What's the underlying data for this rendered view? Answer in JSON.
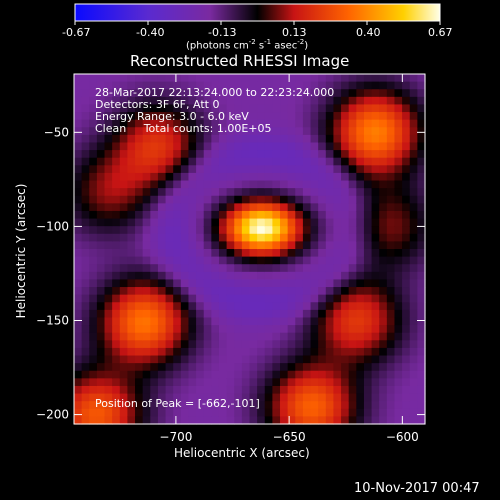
{
  "colorbar": {
    "ticks": [
      "-0.67",
      "-0.40",
      "-0.13",
      "0.13",
      "0.40",
      "0.67"
    ],
    "units_main": "(photons cm",
    "units_exp1": "-2",
    "units_mid": " s",
    "units_exp2": "-1",
    "units_tail": " asec",
    "units_exp3": "-2",
    "units_close": ")"
  },
  "title": "Reconstructed RHESSI Image",
  "info": {
    "line1": "28-Mar-2017 22:13:24.000 to 22:23:24.000",
    "line2": "Detectors: 3F 6F, Att 0",
    "line3": "Energy Range: 3.0 - 6.0 keV",
    "line4": "Clean     Total counts: 1.00E+05"
  },
  "peak_label": "Position of Peak = [-662,-101]",
  "timestamp": "10-Nov-2017 00:47",
  "chart_data": {
    "type": "heatmap",
    "title": "Reconstructed RHESSI Image",
    "xlabel": "Heliocentric X (arcsec)",
    "ylabel": "Heliocentric Y (arcsec)",
    "xlim": [
      -745,
      -590
    ],
    "ylim": [
      -205,
      -19
    ],
    "xticks": [
      -700,
      -650,
      -600
    ],
    "yticks": [
      -50,
      -100,
      -150,
      -200
    ],
    "color_range": [
      -0.67,
      0.67
    ],
    "colormap": "blue-purple-red-yellow-white",
    "peak": {
      "x": -662,
      "y": -101
    },
    "sources": [
      {
        "x": -662,
        "y": -101,
        "value": 0.67
      },
      {
        "x": -612,
        "y": -50,
        "value": 0.38
      },
      {
        "x": -714,
        "y": -151,
        "value": 0.36
      },
      {
        "x": -708,
        "y": -57,
        "value": 0.2
      },
      {
        "x": -620,
        "y": -150,
        "value": 0.22
      },
      {
        "x": -606,
        "y": -100,
        "value": 0.08
      },
      {
        "x": -730,
        "y": -82,
        "value": 0.08
      },
      {
        "x": -640,
        "y": -196,
        "value": 0.32
      },
      {
        "x": -735,
        "y": -200,
        "value": 0.3
      }
    ]
  }
}
